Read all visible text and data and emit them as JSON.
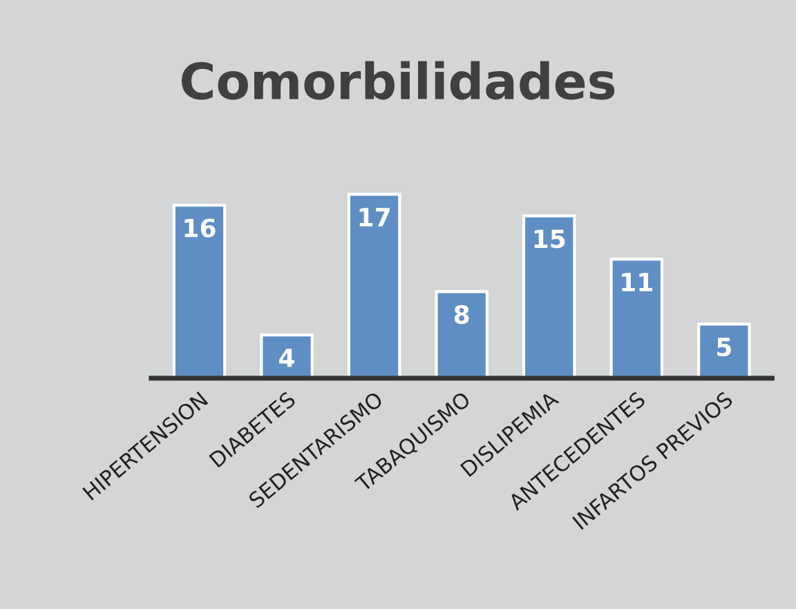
{
  "chart_data": {
    "type": "bar",
    "title": "Comorbilidades",
    "categories": [
      "HIPERTENSION",
      "DIABETES",
      "SEDENTARISMO",
      "TABAQUISMO",
      "DISLIPEMIA",
      "ANTECEDENTES",
      "INFARTOS PREVIOS"
    ],
    "values": [
      16,
      4,
      17,
      8,
      15,
      11,
      5
    ],
    "color": "#5f8ec4",
    "data_labels": true,
    "grid": false,
    "legend": false
  }
}
